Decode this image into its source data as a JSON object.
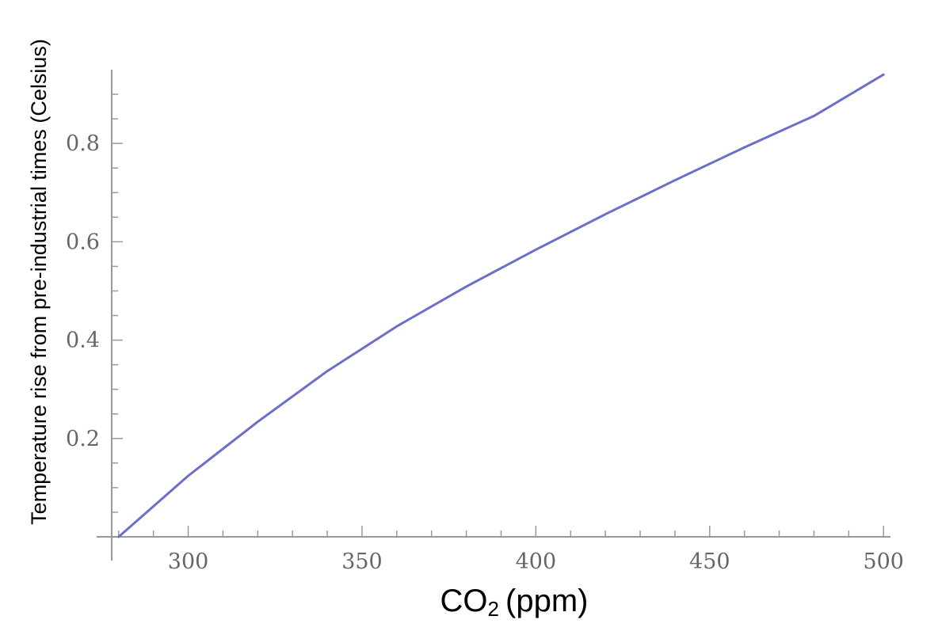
{
  "chart_data": {
    "type": "line",
    "title": "",
    "xlabel": "CO",
    "xlabel_subscript": "2",
    "xlabel_unit": "(ppm)",
    "ylabel": "Temperature rise from pre-industrial times (Celsius)",
    "xlim": [
      278,
      502
    ],
    "ylim": [
      0,
      0.95
    ],
    "x_ticks": [
      {
        "value": 300,
        "label": "300"
      },
      {
        "value": 350,
        "label": "350"
      },
      {
        "value": 400,
        "label": "400"
      },
      {
        "value": 450,
        "label": "450"
      },
      {
        "value": 500,
        "label": "500"
      }
    ],
    "y_ticks": [
      {
        "value": 0.2,
        "label": "0.2"
      },
      {
        "value": 0.4,
        "label": "0.4"
      },
      {
        "value": 0.6,
        "label": "0.6"
      },
      {
        "value": 0.8,
        "label": "0.8"
      }
    ],
    "grid": false,
    "series": [
      {
        "color": "#6b6fc7",
        "x": [
          280,
          300,
          320,
          340,
          360,
          380,
          400,
          420,
          440,
          460,
          480,
          500
        ],
        "y": [
          0.0,
          0.124,
          0.234,
          0.337,
          0.428,
          0.509,
          0.584,
          0.656,
          0.725,
          0.792,
          0.856,
          0.94
        ]
      }
    ]
  }
}
